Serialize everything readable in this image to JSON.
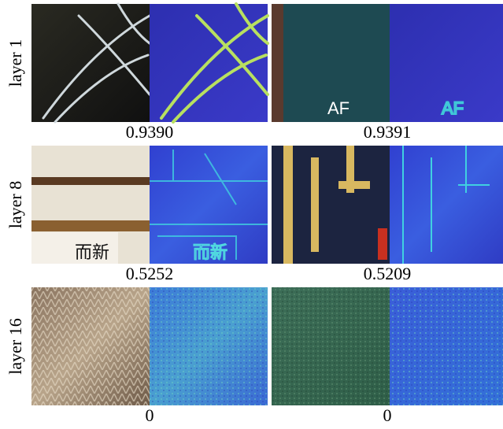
{
  "figure": {
    "rows": [
      {
        "label": "layer 1",
        "scores": [
          "0.9390",
          "0.9391"
        ]
      },
      {
        "label": "layer 8",
        "scores": [
          "0.5252",
          "0.5209"
        ]
      },
      {
        "label": "layer 16",
        "scores": [
          "0",
          "0"
        ]
      }
    ]
  }
}
